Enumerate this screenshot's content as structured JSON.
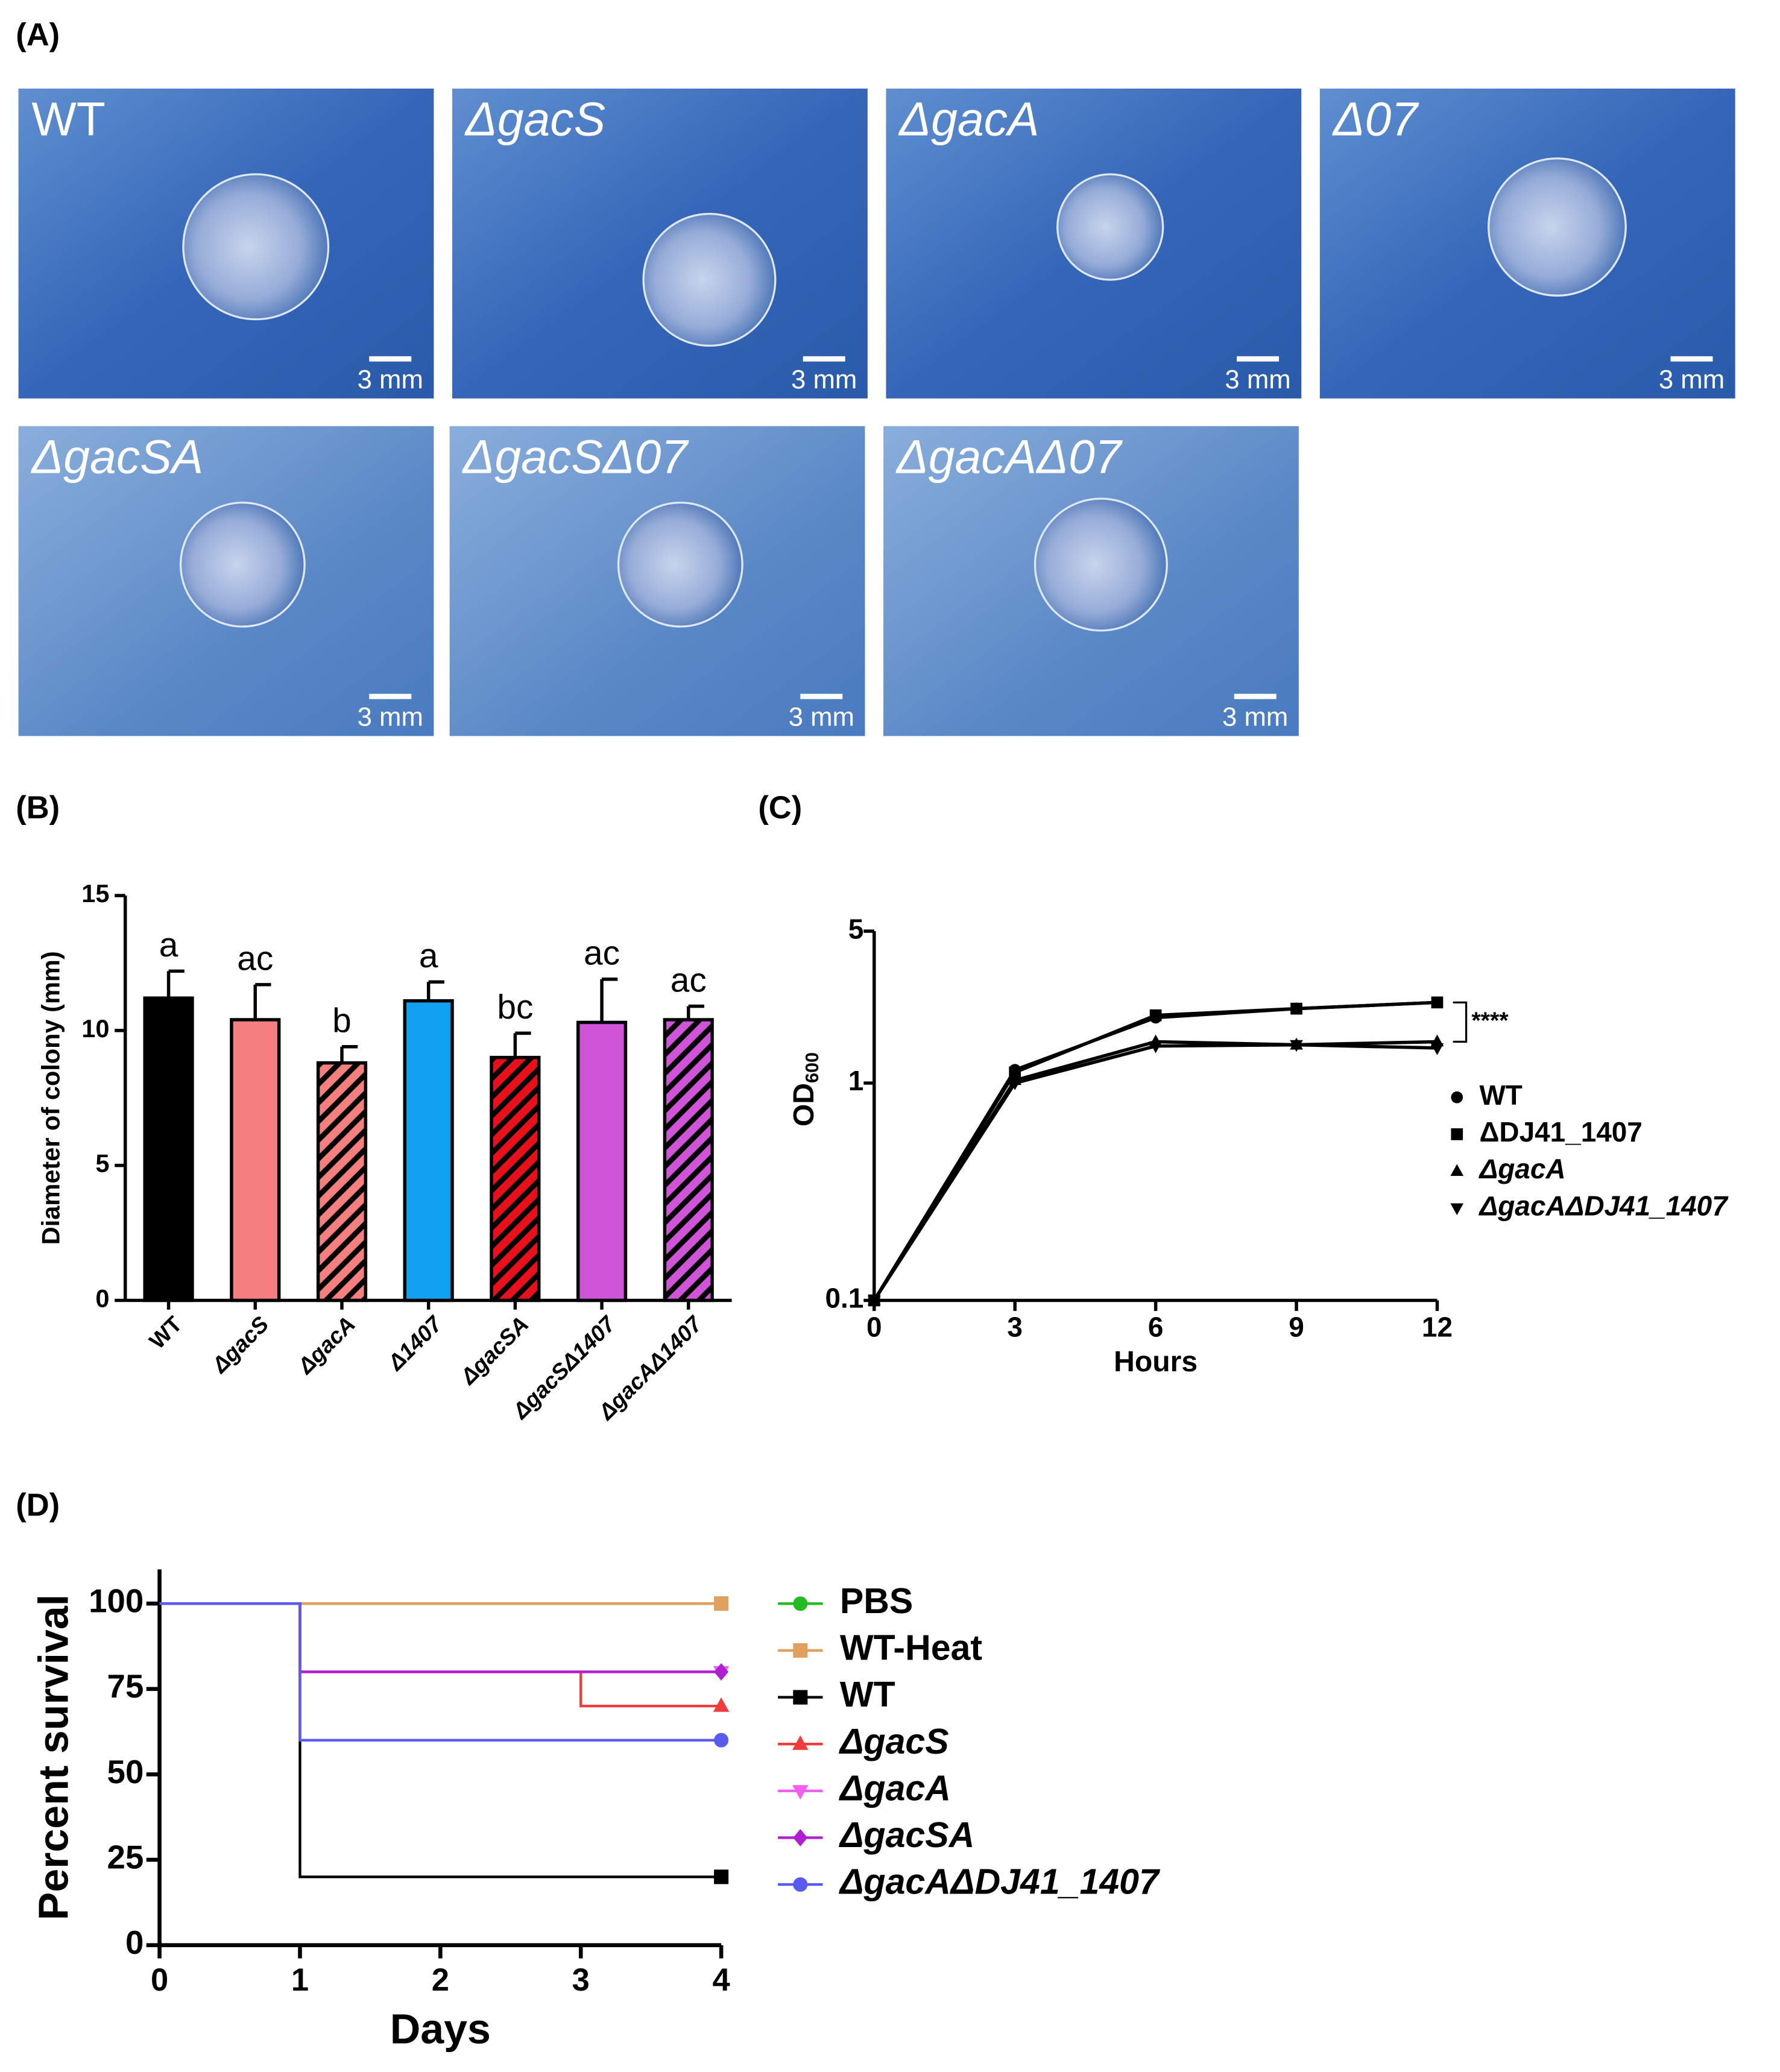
{
  "figure": {
    "panel_labels": [
      "(A)",
      "(B)",
      "(C)",
      "(D)"
    ],
    "photos": [
      {
        "label": "WT",
        "scale_bar": "3 mm"
      },
      {
        "label": "ΔgacS",
        "scale_bar": "3 mm"
      },
      {
        "label": "ΔgacA",
        "scale_bar": "3 mm"
      },
      {
        "label": "Δ07",
        "scale_bar": "3 mm"
      },
      {
        "label": "ΔgacSA",
        "scale_bar": "3 mm"
      },
      {
        "label": "ΔgacSΔ07",
        "scale_bar": "3 mm"
      },
      {
        "label": "ΔgacAΔ07",
        "scale_bar": "3 mm"
      }
    ]
  },
  "chart_data": [
    {
      "type": "bar",
      "ylabel": "Diameter of colony (mm)",
      "categories": [
        "WT",
        "ΔgacS",
        "ΔgacA",
        "Δ1407",
        "ΔgacSA",
        "ΔgacSΔ1407",
        "ΔgacAΔ1407"
      ],
      "values": [
        11.2,
        10.4,
        8.8,
        11.1,
        9.0,
        10.3,
        10.4
      ],
      "errors": [
        1.0,
        1.3,
        0.6,
        0.7,
        0.9,
        1.6,
        0.5
      ],
      "annotations": [
        "a",
        "ac",
        "b",
        "a",
        "bc",
        "ac",
        "ac"
      ],
      "colors": [
        "#000000",
        "#f47f7f",
        "#f47f7f",
        "#12a0f0",
        "#e8101a",
        "#d054d8",
        "#d054d8"
      ],
      "hatch": [
        false,
        false,
        true,
        false,
        true,
        false,
        true
      ],
      "ylim": [
        0,
        15
      ],
      "yticks": [
        0,
        5,
        10,
        15
      ]
    },
    {
      "type": "line",
      "log_y": true,
      "xlabel": "Hours",
      "ylabel": {
        "text": "OD",
        "subscript": "600"
      },
      "x": [
        0,
        3,
        6,
        9,
        12
      ],
      "xlim": [
        0,
        12
      ],
      "xticks": [
        0,
        3,
        6,
        9,
        12
      ],
      "ylim": [
        0.1,
        5
      ],
      "yticks": [
        0.1,
        1,
        5
      ],
      "annotation": "****",
      "series": [
        {
          "name": "WT",
          "color": "#000000",
          "marker": "circle",
          "values": [
            0.1,
            1.15,
            2.0,
            2.2,
            2.35
          ]
        },
        {
          "name": "ΔDJ41_1407",
          "color": "#000000",
          "marker": "square",
          "values": [
            0.1,
            1.12,
            2.05,
            2.2,
            2.35
          ]
        },
        {
          "name": "ΔgacA",
          "color": "#000000",
          "marker": "triangle",
          "values": [
            0.1,
            1.03,
            1.55,
            1.5,
            1.55
          ]
        },
        {
          "name": "ΔgacAΔDJ41_1407",
          "color": "#000000",
          "marker": "triangle-down",
          "values": [
            0.1,
            1.0,
            1.48,
            1.5,
            1.45
          ]
        }
      ]
    },
    {
      "type": "survival",
      "xlabel": "Days",
      "ylabel": "Percent survival",
      "xlim": [
        0,
        4
      ],
      "xticks": [
        0,
        1,
        2,
        3,
        4
      ],
      "ylim": [
        0,
        110
      ],
      "yticks": [
        0,
        25,
        50,
        75,
        100
      ],
      "series": [
        {
          "name": "PBS",
          "color": "#22bb22",
          "marker": "circle",
          "x": [
            0,
            4
          ],
          "values": [
            100,
            100
          ]
        },
        {
          "name": "WT-Heat",
          "color": "#e0a060",
          "marker": "square",
          "x": [
            0,
            4
          ],
          "values": [
            100,
            100
          ]
        },
        {
          "name": "WT",
          "color": "#000000",
          "marker": "square",
          "x": [
            0,
            1,
            4
          ],
          "values": [
            100,
            20,
            20
          ]
        },
        {
          "name": "ΔgacS",
          "color": "#f03c3c",
          "marker": "triangle",
          "x": [
            0,
            1,
            3,
            4
          ],
          "values": [
            100,
            80,
            70,
            70
          ]
        },
        {
          "name": "ΔgacA",
          "color": "#f060f0",
          "marker": "triangle-down",
          "x": [
            0,
            1,
            4
          ],
          "values": [
            100,
            80,
            80
          ]
        },
        {
          "name": "ΔgacSA",
          "color": "#b020d0",
          "marker": "diamond",
          "x": [
            0,
            1,
            4
          ],
          "values": [
            100,
            80,
            80
          ]
        },
        {
          "name": "ΔgacAΔDJ41_1407",
          "color": "#5a5af0",
          "marker": "circle",
          "x": [
            0,
            1,
            4
          ],
          "values": [
            100,
            60,
            60
          ]
        }
      ]
    }
  ]
}
